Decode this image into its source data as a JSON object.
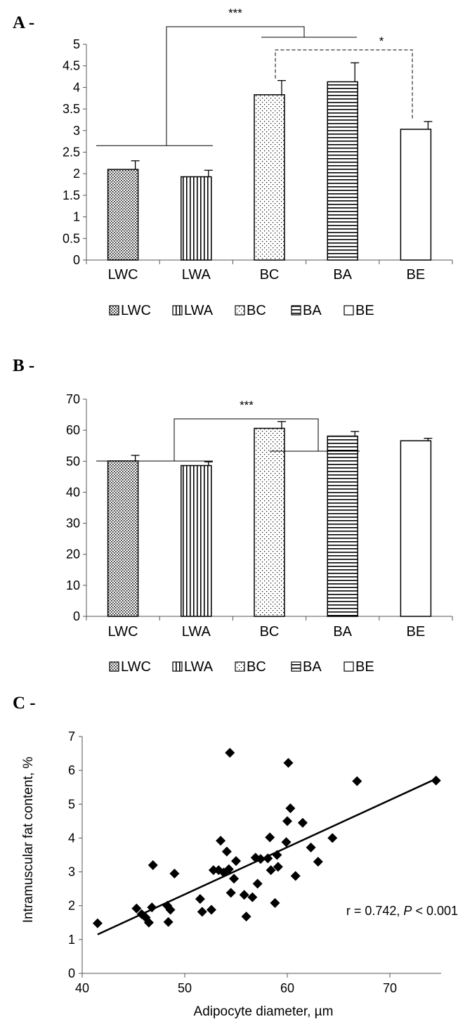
{
  "chart_data": [
    {
      "panel": "A -",
      "type": "bar",
      "categories": [
        "LWC",
        "LWA",
        "BC",
        "BA",
        "BE"
      ],
      "values": [
        2.1,
        1.93,
        3.83,
        4.13,
        3.03
      ],
      "errors": [
        0.2,
        0.15,
        0.33,
        0.44,
        0.18
      ],
      "ylim": [
        0,
        5
      ],
      "yticks": [
        "0",
        "0.5",
        "1",
        "1.5",
        "2",
        "2.5",
        "3",
        "3.5",
        "4",
        "4.5",
        "5"
      ],
      "legend": [
        "LWC",
        "LWA",
        "BC",
        "BA",
        "BE"
      ],
      "legend_position": "bottom",
      "patterns": [
        "dots-dense",
        "vertical-lines",
        "dots-sparse",
        "horizontal-lines",
        "none"
      ],
      "significance": [
        {
          "label": "***",
          "style": "solid",
          "between": [
            "LWC+LWA",
            "BC+BA"
          ]
        },
        {
          "label": "*",
          "style": "dashed",
          "between": [
            "BC+BA",
            "BE"
          ]
        }
      ]
    },
    {
      "panel": "B -",
      "type": "bar",
      "categories": [
        "LWC",
        "LWA",
        "BC",
        "BA",
        "BE"
      ],
      "values": [
        50.1,
        48.6,
        60.6,
        58.1,
        56.6
      ],
      "errors": [
        1.8,
        1.2,
        2.2,
        1.5,
        0.8
      ],
      "ylim": [
        0,
        70
      ],
      "yticks": [
        "0",
        "10",
        "20",
        "30",
        "40",
        "50",
        "60",
        "70"
      ],
      "legend": [
        "LWC",
        "LWA",
        "BC",
        "BA",
        "BE"
      ],
      "legend_position": "bottom",
      "patterns": [
        "dots-dense",
        "vertical-lines",
        "dots-sparse",
        "horizontal-lines",
        "none"
      ],
      "significance": [
        {
          "label": "***",
          "style": "solid",
          "between": [
            "LWC+LWA",
            "BC+BA"
          ]
        }
      ]
    },
    {
      "panel": "C -",
      "type": "scatter",
      "xlabel": "Adipocyte diameter, µm",
      "ylabel": "Intramuscular fat content, %",
      "xlim": [
        40,
        75
      ],
      "ylim": [
        0,
        7
      ],
      "xticks": [
        "40",
        "50",
        "60",
        "70"
      ],
      "yticks": [
        "0",
        "1",
        "2",
        "3",
        "4",
        "5",
        "6",
        "7"
      ],
      "annotation": "r = 0.742, P < 0.001",
      "annotation_parts": [
        "r = 0.742, ",
        "P",
        " < 0.001"
      ],
      "marker": "diamond",
      "trendline": {
        "x": [
          41.5,
          74.5
        ],
        "y": [
          1.15,
          5.75
        ]
      },
      "points": [
        [
          41.5,
          1.48
        ],
        [
          45.3,
          1.92
        ],
        [
          45.8,
          1.75
        ],
        [
          46.2,
          1.65
        ],
        [
          46.5,
          1.5
        ],
        [
          46.8,
          1.95
        ],
        [
          46.9,
          3.2
        ],
        [
          48.3,
          2.0
        ],
        [
          48.4,
          1.52
        ],
        [
          48.6,
          1.88
        ],
        [
          49.0,
          2.95
        ],
        [
          51.5,
          2.2
        ],
        [
          51.7,
          1.82
        ],
        [
          52.6,
          1.88
        ],
        [
          52.8,
          3.05
        ],
        [
          53.3,
          3.05
        ],
        [
          53.5,
          3.92
        ],
        [
          53.8,
          2.98
        ],
        [
          54.1,
          3.6
        ],
        [
          54.3,
          3.08
        ],
        [
          54.4,
          6.52
        ],
        [
          54.5,
          2.38
        ],
        [
          54.8,
          2.8
        ],
        [
          55.0,
          3.32
        ],
        [
          55.8,
          2.32
        ],
        [
          56.0,
          1.68
        ],
        [
          56.6,
          2.25
        ],
        [
          56.9,
          3.42
        ],
        [
          57.1,
          2.65
        ],
        [
          57.4,
          3.38
        ],
        [
          58.1,
          3.4
        ],
        [
          58.3,
          4.02
        ],
        [
          58.4,
          3.05
        ],
        [
          58.8,
          2.08
        ],
        [
          59.0,
          3.5
        ],
        [
          59.1,
          3.15
        ],
        [
          59.9,
          3.88
        ],
        [
          60.0,
          4.5
        ],
        [
          60.1,
          6.22
        ],
        [
          60.3,
          4.88
        ],
        [
          60.8,
          2.88
        ],
        [
          61.5,
          4.45
        ],
        [
          62.3,
          3.72
        ],
        [
          63.0,
          3.3
        ],
        [
          64.4,
          4.0
        ],
        [
          66.8,
          5.68
        ],
        [
          74.5,
          5.7
        ]
      ]
    }
  ]
}
